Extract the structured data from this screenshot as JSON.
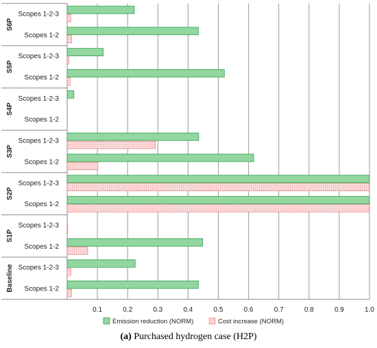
{
  "chart_data": {
    "type": "bar",
    "orientation": "horizontal",
    "groups": [
      {
        "name": "S6P",
        "categories": [
          "Scopes 1-2-3",
          "Scopes 1-2"
        ]
      },
      {
        "name": "S5P",
        "categories": [
          "Scopes 1-2-3",
          "Scopes 1-2"
        ]
      },
      {
        "name": "S4P",
        "categories": [
          "Scopes 1-2-3",
          "Scopes 1-2"
        ]
      },
      {
        "name": "S3P",
        "categories": [
          "Scopes 1-2-3",
          "Scopes 1-2"
        ]
      },
      {
        "name": "S2P",
        "categories": [
          "Scopes 1-2-3",
          "Scopes 1-2"
        ]
      },
      {
        "name": "S1P",
        "categories": [
          "Scopes 1-2-3",
          "Scopes 1-2"
        ]
      },
      {
        "name": "Baseline",
        "categories": [
          "Scopes 1-2-3",
          "Scopes 1-2"
        ]
      }
    ],
    "series": [
      {
        "name": "Emission reduction (NORM)",
        "color": "#92d6a0",
        "border": "#2e9e4a",
        "values": [
          0.222,
          0.434,
          0.119,
          0.52,
          0.022,
          0.0,
          0.435,
          0.617,
          1.0,
          1.0,
          0.0,
          0.448,
          0.225,
          0.434
        ]
      },
      {
        "name": "Cost increase (NORM)",
        "color": "#f4a6a6",
        "border": "#e06060",
        "values": [
          0.012,
          0.015,
          0.005,
          0.01,
          0.0,
          0.0,
          0.292,
          0.102,
          1.0,
          1.0,
          0.002,
          0.068,
          0.012,
          0.015
        ]
      }
    ],
    "xlim": [
      0,
      1.0
    ],
    "xticks": [
      "0.1",
      "0.2",
      "0.3",
      "0.4",
      "0.5",
      "0.6",
      "0.7",
      "0.8",
      "0.9",
      "1.0"
    ],
    "grid": true,
    "legend_position": "bottom"
  },
  "caption": {
    "label": "(a)",
    "text": "Purchased hydrogen case (H2P)"
  }
}
